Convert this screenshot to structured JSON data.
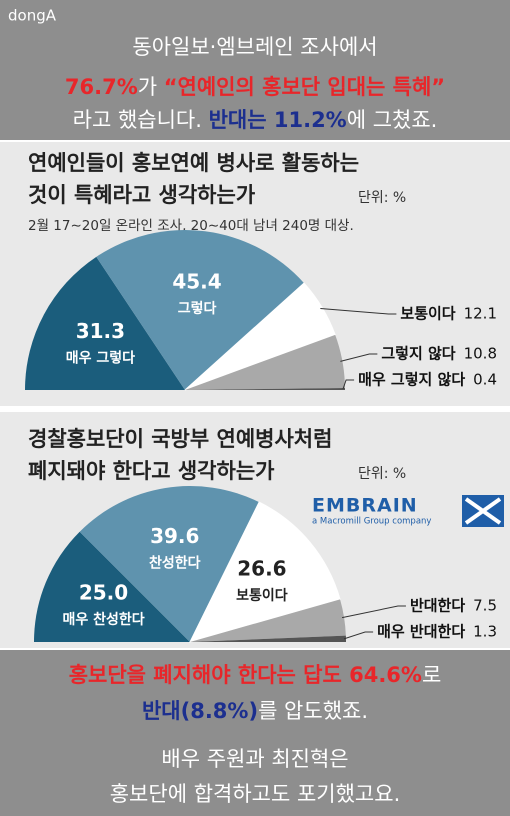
{
  "header": {
    "brand": "dongA",
    "lines": [
      [
        {
          "text": "동아일보·엠브레인 조사에서",
          "color": "#ffffff"
        }
      ],
      [
        {
          "text": "76.7%",
          "color": "#e8262a"
        },
        {
          "text": "가 ",
          "color": "#ffffff"
        },
        {
          "text": "“연예인의 홍보단 입대는 특혜”",
          "color": "#e8262a"
        }
      ],
      [
        {
          "text": "라고 했습니다. ",
          "color": "#ffffff"
        },
        {
          "text": "반대는 11.2%",
          "color": "#1c2f8f"
        },
        {
          "text": "에 그쳤죠.",
          "color": "#ffffff"
        }
      ]
    ]
  },
  "chart_data": [
    {
      "type": "pie",
      "half": true,
      "title": [
        "연예인들이 홍보연예 병사로 활동하는",
        "것이 특혜라고 생각하는가"
      ],
      "unit": "단위: %",
      "note": "2월 17∼20일 온라인 조사, 20∼40대 남녀 240명 대상.",
      "categories": [
        "매우 그렇다",
        "그렇다",
        "보통이다",
        "그렇지 않다",
        "매우 그렇지 않다"
      ],
      "values": [
        31.3,
        45.4,
        12.1,
        10.8,
        0.4
      ],
      "colors": [
        "#1b5d7c",
        "#5f93ae",
        "#ffffff",
        "#a9a9a9",
        "#555555"
      ]
    },
    {
      "type": "pie",
      "half": true,
      "title": [
        "경찰홍보단이 국방부 연예병사처럼",
        "폐지돼야 한다고 생각하는가"
      ],
      "unit": "단위: %",
      "categories": [
        "매우 찬성한다",
        "찬성한다",
        "보통이다",
        "반대한다",
        "매우 반대한다"
      ],
      "values": [
        25,
        39.6,
        26.6,
        7.5,
        1.3
      ],
      "value_labels": [
        "25.0",
        "39.6",
        "26.6",
        "7.5",
        "1.3"
      ],
      "colors": [
        "#1b5d7c",
        "#5f93ae",
        "#ffffff",
        "#a9a9a9",
        "#555555"
      ],
      "logo": {
        "name": "EMBRAIN",
        "sub": "a Macromill Group company"
      }
    }
  ],
  "footer": {
    "lines": [
      [
        {
          "text": "홍보단을 폐지해야 한다는 답도 64.6%",
          "color": "#e8262a"
        },
        {
          "text": "로",
          "color": "#ffffff"
        }
      ],
      [
        {
          "text": "반대(8.8%)",
          "color": "#1c2f8f"
        },
        {
          "text": "를 압도했죠.",
          "color": "#ffffff"
        }
      ],
      [
        {
          "text": "배우 주원과 최진혁은",
          "color": "#ffffff"
        }
      ],
      [
        {
          "text": "홍보단에 합격하고도 포기했고요.",
          "color": "#ffffff"
        }
      ]
    ]
  }
}
